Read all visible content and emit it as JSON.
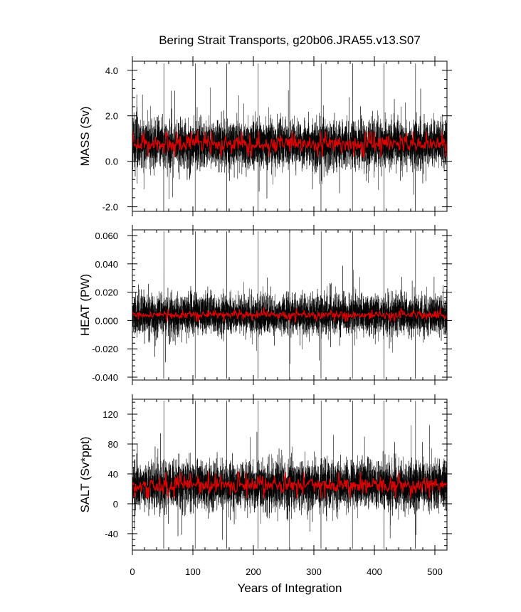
{
  "figure": {
    "title": "Bering Strait Transports, g20b06.JRA55.v13.S07",
    "xlabel": "Years of Integration"
  },
  "chart_data": [
    {
      "type": "line",
      "ylabel": "MASS (Sv)",
      "xlim": [
        0,
        520
      ],
      "ylim": [
        -2.2,
        4.4
      ],
      "yticks": [
        -2.0,
        0.0,
        2.0,
        4.0
      ],
      "ytick_labels": [
        "-2.0",
        "0.0",
        "2.0",
        "4.0"
      ],
      "xticks": [
        0,
        100,
        200,
        300,
        400,
        500
      ],
      "xtick_labels": [
        "0",
        "100",
        "200",
        "300",
        "400",
        "500"
      ],
      "grid": false,
      "series": [
        {
          "color": "#000000",
          "kind": "monthly",
          "mean": 0.75,
          "noise": 0.9,
          "spike_max": 4.3,
          "spike_min": -2.2,
          "periodic_spike_years": [
            0,
            52,
            104,
            156,
            208,
            260,
            312,
            364,
            416,
            468,
            520
          ]
        },
        {
          "color": "#dd0000",
          "kind": "annual",
          "mean": 0.75,
          "noise": 0.35
        }
      ]
    },
    {
      "type": "line",
      "ylabel": "HEAT (PW)",
      "xlim": [
        0,
        520
      ],
      "ylim": [
        -0.042,
        0.064
      ],
      "yticks": [
        -0.04,
        -0.02,
        0.0,
        0.02,
        0.04,
        0.06
      ],
      "ytick_labels": [
        "-0.040",
        "-0.020",
        "0.000",
        "0.020",
        "0.040",
        "0.060"
      ],
      "xticks": [
        0,
        100,
        200,
        300,
        400,
        500
      ],
      "xtick_labels": [
        "0",
        "100",
        "200",
        "300",
        "400",
        "500"
      ],
      "grid": false,
      "series": [
        {
          "color": "#000000",
          "kind": "monthly",
          "mean": 0.004,
          "noise": 0.012,
          "spike_max": 0.063,
          "spike_min": -0.041,
          "periodic_spike_years": [
            0,
            52,
            104,
            156,
            208,
            260,
            312,
            364,
            416,
            468,
            520
          ]
        },
        {
          "color": "#dd0000",
          "kind": "annual",
          "mean": 0.004,
          "noise": 0.003
        }
      ]
    },
    {
      "type": "line",
      "ylabel": "SALT (Sv*ppt)",
      "xlim": [
        0,
        520
      ],
      "ylim": [
        -62,
        140
      ],
      "yticks": [
        -40,
        0,
        40,
        80,
        120
      ],
      "ytick_labels": [
        "-40",
        "0",
        "40",
        "80",
        "120"
      ],
      "xticks": [
        0,
        100,
        200,
        300,
        400,
        500
      ],
      "xtick_labels": [
        "0",
        "100",
        "200",
        "300",
        "400",
        "500"
      ],
      "grid": false,
      "series": [
        {
          "color": "#000000",
          "kind": "monthly",
          "mean": 25,
          "noise": 28,
          "spike_max": 138,
          "spike_min": -60,
          "periodic_spike_years": [
            0,
            52,
            104,
            156,
            208,
            260,
            312,
            364,
            416,
            468,
            520
          ]
        },
        {
          "color": "#dd0000",
          "kind": "annual",
          "mean": 25,
          "noise": 11
        }
      ]
    }
  ]
}
